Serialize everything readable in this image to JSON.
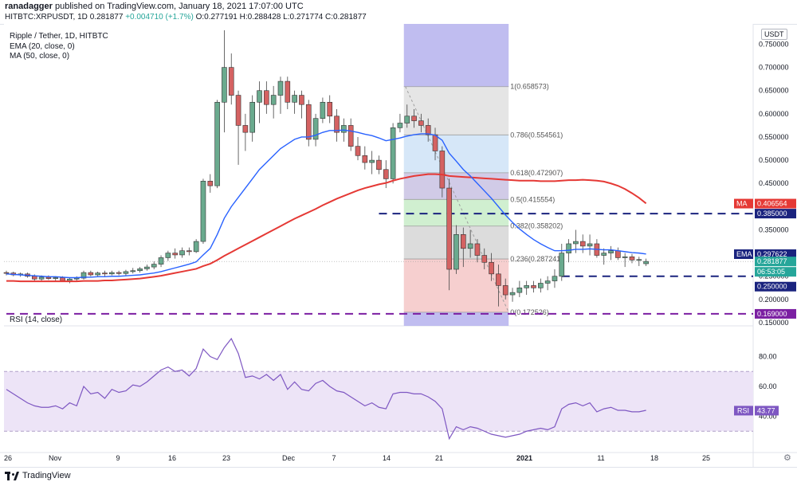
{
  "header": {
    "publisher": "ranadagger",
    "published_text": "published on TradingView.com, January 18, 2021 17:07:00 UTC",
    "symbol_line": "HITBTC:XRPUSDT, 1D",
    "ohlc_prefix": "0.281877",
    "change": "+0.004710 (+1.7%)",
    "o": "O:0.277191",
    "h": "H:0.288428",
    "l": "L:0.271774",
    "c": "C:0.281877"
  },
  "legend": {
    "title": "Ripple / Tether, 1D, HITBTC",
    "ema": "EMA (20, close, 0)",
    "ma": "MA (50, close, 0)",
    "rsi": "RSI (14, close)"
  },
  "currency_button": "USDT",
  "footer": {
    "logo_text": "TradingView"
  },
  "colors": {
    "up": "#26a69a",
    "down": "#ef5350",
    "candle_body_up": "#6aaa8e",
    "candle_body_down": "#d46262",
    "ema": "#2962ff",
    "ma": "#e53935",
    "rsi": "#7e57c2",
    "support": "#1a237e",
    "support2": "#7b1fa2"
  },
  "chart_data": {
    "type": "candlestick",
    "y_axis_labels": [
      "0.750000",
      "0.700000",
      "0.650000",
      "0.600000",
      "0.550000",
      "0.500000",
      "0.450000",
      "0.350000",
      "0.300000",
      "0.250000",
      "0.200000",
      "0.150000"
    ],
    "x_axis_labels": [
      "26",
      "Nov",
      "9",
      "16",
      "23",
      "Dec",
      "7",
      "14",
      "21",
      "2021",
      "11",
      "18",
      "25"
    ],
    "price_range": [
      0.15,
      0.78
    ],
    "price_tags": [
      {
        "label": "MA",
        "value": "0.406564",
        "price": 0.406564,
        "color": "#e53935"
      },
      {
        "label": "",
        "value": "0.385000",
        "price": 0.385,
        "color": "#1a237e"
      },
      {
        "label": "EMA",
        "value": "0.297622",
        "price": 0.297622,
        "color": "#1a237e"
      },
      {
        "label": "",
        "value": "0.281877",
        "price": 0.281877,
        "color": "#26a69a"
      },
      {
        "label": "",
        "value": "06:53:05",
        "price": 0.257,
        "color": "#26a69a"
      },
      {
        "label": "",
        "value": "0.250000",
        "price": 0.25,
        "color": "#1a237e"
      },
      {
        "label": "",
        "value": "0.169000",
        "price": 0.169,
        "color": "#7b1fa2"
      }
    ],
    "horizontal_lines": [
      {
        "price": 0.385,
        "start": "Dec 18",
        "color": "#1a237e"
      },
      {
        "price": 0.25,
        "start": "Jan 5",
        "color": "#1a237e"
      },
      {
        "price": 0.169,
        "start": "Oct 26",
        "color": "#7b1fa2"
      }
    ],
    "fibonacci": {
      "levels": [
        {
          "ratio": "1",
          "price": 0.658573,
          "label": "1(0.658573)",
          "fill": "#e0e0e0"
        },
        {
          "ratio": "0.786",
          "price": 0.554561,
          "label": "0.786(0.554561)",
          "fill": "#cfe3f7"
        },
        {
          "ratio": "0.618",
          "price": 0.472907,
          "label": "0.618(0.472907)",
          "fill": "#c9c2e3"
        },
        {
          "ratio": "0.5",
          "price": 0.415554,
          "label": "0.5(0.415554)",
          "fill": "#c8ecc8"
        },
        {
          "ratio": "0.382",
          "price": 0.358202,
          "label": "0.382(0.358202)",
          "fill": "#d6d6d6"
        },
        {
          "ratio": "0.236",
          "price": 0.287241,
          "label": "0.236(0.287241)",
          "fill": "#f4c7c7"
        },
        {
          "ratio": "0",
          "price": 0.172526,
          "label": "0(0.172526)",
          "fill": ""
        }
      ]
    },
    "candles": [
      [
        0.258,
        0.262,
        0.252,
        0.257
      ],
      [
        0.257,
        0.26,
        0.25,
        0.253
      ],
      [
        0.253,
        0.258,
        0.249,
        0.255
      ],
      [
        0.255,
        0.258,
        0.247,
        0.25
      ],
      [
        0.25,
        0.254,
        0.24,
        0.244
      ],
      [
        0.244,
        0.252,
        0.24,
        0.248
      ],
      [
        0.248,
        0.252,
        0.242,
        0.245
      ],
      [
        0.245,
        0.25,
        0.24,
        0.247
      ],
      [
        0.247,
        0.25,
        0.238,
        0.24
      ],
      [
        0.24,
        0.247,
        0.235,
        0.244
      ],
      [
        0.244,
        0.25,
        0.24,
        0.246
      ],
      [
        0.246,
        0.262,
        0.243,
        0.258
      ],
      [
        0.258,
        0.262,
        0.25,
        0.253
      ],
      [
        0.253,
        0.26,
        0.25,
        0.257
      ],
      [
        0.257,
        0.262,
        0.25,
        0.255
      ],
      [
        0.255,
        0.262,
        0.252,
        0.258
      ],
      [
        0.258,
        0.262,
        0.252,
        0.256
      ],
      [
        0.256,
        0.264,
        0.252,
        0.26
      ],
      [
        0.26,
        0.268,
        0.256,
        0.262
      ],
      [
        0.262,
        0.27,
        0.258,
        0.266
      ],
      [
        0.266,
        0.275,
        0.262,
        0.27
      ],
      [
        0.27,
        0.282,
        0.265,
        0.276
      ],
      [
        0.276,
        0.295,
        0.27,
        0.29
      ],
      [
        0.29,
        0.305,
        0.283,
        0.3
      ],
      [
        0.3,
        0.31,
        0.288,
        0.296
      ],
      [
        0.296,
        0.312,
        0.29,
        0.305
      ],
      [
        0.305,
        0.312,
        0.295,
        0.303
      ],
      [
        0.303,
        0.33,
        0.3,
        0.325
      ],
      [
        0.325,
        0.46,
        0.32,
        0.455
      ],
      [
        0.455,
        0.47,
        0.43,
        0.445
      ],
      [
        0.445,
        0.63,
        0.44,
        0.625
      ],
      [
        0.625,
        0.78,
        0.56,
        0.7
      ],
      [
        0.7,
        0.73,
        0.62,
        0.64
      ],
      [
        0.64,
        0.65,
        0.49,
        0.575
      ],
      [
        0.575,
        0.6,
        0.52,
        0.56
      ],
      [
        0.56,
        0.64,
        0.54,
        0.625
      ],
      [
        0.625,
        0.67,
        0.58,
        0.65
      ],
      [
        0.65,
        0.67,
        0.6,
        0.62
      ],
      [
        0.62,
        0.66,
        0.59,
        0.64
      ],
      [
        0.64,
        0.68,
        0.6,
        0.67
      ],
      [
        0.67,
        0.68,
        0.61,
        0.625
      ],
      [
        0.625,
        0.65,
        0.6,
        0.64
      ],
      [
        0.64,
        0.65,
        0.59,
        0.62
      ],
      [
        0.62,
        0.63,
        0.53,
        0.545
      ],
      [
        0.545,
        0.6,
        0.53,
        0.59
      ],
      [
        0.59,
        0.635,
        0.58,
        0.625
      ],
      [
        0.625,
        0.64,
        0.58,
        0.595
      ],
      [
        0.595,
        0.61,
        0.54,
        0.56
      ],
      [
        0.56,
        0.59,
        0.54,
        0.575
      ],
      [
        0.575,
        0.59,
        0.52,
        0.53
      ],
      [
        0.53,
        0.55,
        0.5,
        0.51
      ],
      [
        0.51,
        0.53,
        0.48,
        0.495
      ],
      [
        0.495,
        0.52,
        0.47,
        0.5
      ],
      [
        0.5,
        0.51,
        0.47,
        0.48
      ],
      [
        0.48,
        0.5,
        0.44,
        0.46
      ],
      [
        0.46,
        0.58,
        0.45,
        0.57
      ],
      [
        0.57,
        0.6,
        0.56,
        0.58
      ],
      [
        0.58,
        0.62,
        0.57,
        0.595
      ],
      [
        0.595,
        0.61,
        0.57,
        0.585
      ],
      [
        0.585,
        0.6,
        0.56,
        0.575
      ],
      [
        0.575,
        0.59,
        0.54,
        0.555
      ],
      [
        0.555,
        0.57,
        0.5,
        0.52
      ],
      [
        0.52,
        0.53,
        0.42,
        0.44
      ],
      [
        0.44,
        0.46,
        0.22,
        0.265
      ],
      [
        0.265,
        0.36,
        0.255,
        0.34
      ],
      [
        0.34,
        0.355,
        0.27,
        0.31
      ],
      [
        0.31,
        0.35,
        0.29,
        0.32
      ],
      [
        0.32,
        0.33,
        0.28,
        0.295
      ],
      [
        0.295,
        0.31,
        0.265,
        0.28
      ],
      [
        0.28,
        0.3,
        0.24,
        0.255
      ],
      [
        0.255,
        0.275,
        0.185,
        0.23
      ],
      [
        0.23,
        0.245,
        0.2,
        0.21
      ],
      [
        0.21,
        0.225,
        0.195,
        0.215
      ],
      [
        0.215,
        0.24,
        0.205,
        0.225
      ],
      [
        0.225,
        0.24,
        0.21,
        0.23
      ],
      [
        0.23,
        0.24,
        0.215,
        0.225
      ],
      [
        0.225,
        0.245,
        0.215,
        0.235
      ],
      [
        0.235,
        0.25,
        0.22,
        0.24
      ],
      [
        0.24,
        0.265,
        0.225,
        0.25
      ],
      [
        0.25,
        0.32,
        0.24,
        0.3
      ],
      [
        0.3,
        0.33,
        0.28,
        0.32
      ],
      [
        0.32,
        0.35,
        0.3,
        0.325
      ],
      [
        0.325,
        0.34,
        0.3,
        0.315
      ],
      [
        0.315,
        0.34,
        0.295,
        0.32
      ],
      [
        0.32,
        0.33,
        0.29,
        0.295
      ],
      [
        0.295,
        0.31,
        0.275,
        0.3
      ],
      [
        0.3,
        0.315,
        0.285,
        0.305
      ],
      [
        0.305,
        0.312,
        0.285,
        0.29
      ],
      [
        0.29,
        0.3,
        0.27,
        0.292
      ],
      [
        0.292,
        0.298,
        0.278,
        0.285
      ],
      [
        0.285,
        0.292,
        0.272,
        0.286
      ],
      [
        0.277,
        0.288,
        0.272,
        0.282
      ]
    ],
    "ema20": [
      0.255,
      0.254,
      0.253,
      0.252,
      0.251,
      0.25,
      0.249,
      0.249,
      0.248,
      0.247,
      0.247,
      0.248,
      0.248,
      0.249,
      0.249,
      0.25,
      0.25,
      0.251,
      0.252,
      0.253,
      0.255,
      0.257,
      0.26,
      0.264,
      0.268,
      0.272,
      0.276,
      0.281,
      0.296,
      0.31,
      0.34,
      0.375,
      0.4,
      0.42,
      0.44,
      0.46,
      0.48,
      0.495,
      0.51,
      0.525,
      0.535,
      0.545,
      0.55,
      0.55,
      0.554,
      0.56,
      0.564,
      0.564,
      0.565,
      0.563,
      0.56,
      0.556,
      0.553,
      0.548,
      0.542,
      0.545,
      0.548,
      0.552,
      0.555,
      0.557,
      0.557,
      0.554,
      0.543,
      0.515,
      0.498,
      0.48,
      0.466,
      0.45,
      0.434,
      0.418,
      0.4,
      0.382,
      0.366,
      0.352,
      0.34,
      0.329,
      0.32,
      0.312,
      0.305,
      0.305,
      0.306,
      0.308,
      0.308,
      0.309,
      0.308,
      0.307,
      0.307,
      0.305,
      0.303,
      0.301,
      0.3,
      0.298
    ],
    "ma50": [
      0.24,
      0.24,
      0.239,
      0.239,
      0.239,
      0.239,
      0.239,
      0.239,
      0.239,
      0.239,
      0.239,
      0.24,
      0.24,
      0.24,
      0.241,
      0.241,
      0.242,
      0.243,
      0.244,
      0.245,
      0.247,
      0.249,
      0.251,
      0.254,
      0.257,
      0.26,
      0.263,
      0.266,
      0.272,
      0.277,
      0.285,
      0.294,
      0.302,
      0.31,
      0.318,
      0.326,
      0.334,
      0.342,
      0.35,
      0.358,
      0.366,
      0.374,
      0.381,
      0.388,
      0.395,
      0.403,
      0.41,
      0.417,
      0.423,
      0.429,
      0.435,
      0.44,
      0.444,
      0.448,
      0.451,
      0.456,
      0.46,
      0.463,
      0.466,
      0.468,
      0.47,
      0.47,
      0.469,
      0.466,
      0.465,
      0.464,
      0.463,
      0.462,
      0.461,
      0.46,
      0.459,
      0.458,
      0.457,
      0.456,
      0.456,
      0.456,
      0.455,
      0.455,
      0.455,
      0.456,
      0.457,
      0.457,
      0.458,
      0.457,
      0.456,
      0.454,
      0.45,
      0.445,
      0.438,
      0.429,
      0.419,
      0.407
    ],
    "rsi": {
      "range": [
        20,
        100
      ],
      "y_axis_labels": [
        "80.00",
        "60.00",
        "40.00"
      ],
      "bands": [
        30,
        70
      ],
      "current": "43.77",
      "values": [
        58,
        55,
        52,
        49,
        47,
        46,
        46,
        47,
        45,
        49,
        47,
        60,
        55,
        56,
        52,
        58,
        56,
        57,
        61,
        60,
        63,
        67,
        71,
        73,
        70,
        71,
        67,
        72,
        85,
        80,
        78,
        86,
        92,
        82,
        66,
        67,
        65,
        68,
        64,
        68,
        58,
        63,
        58,
        57,
        62,
        64,
        60,
        57,
        56,
        53,
        50,
        47,
        49,
        46,
        45,
        55,
        56,
        56,
        55,
        55,
        53,
        50,
        45,
        25,
        33,
        31,
        33,
        32,
        30,
        28,
        27,
        26,
        27,
        28,
        30,
        31,
        32,
        31,
        33,
        45,
        48,
        49,
        47,
        49,
        43,
        45,
        46,
        44,
        44,
        43,
        43,
        44
      ]
    }
  }
}
